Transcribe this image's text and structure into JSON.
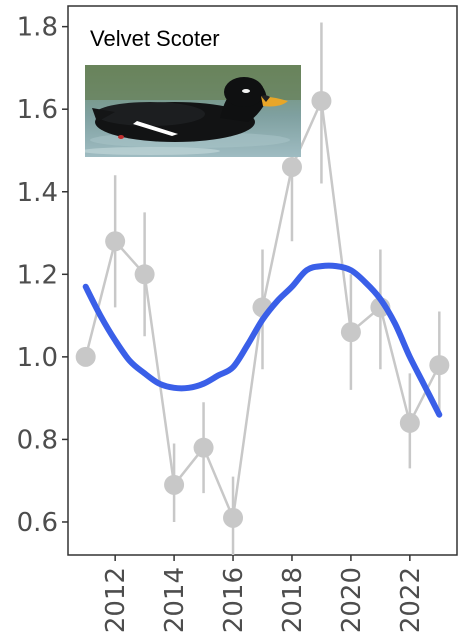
{
  "chart_data": {
    "type": "line",
    "title": "Velvet Scoter",
    "xlabel": "",
    "ylabel": "",
    "xlim": [
      2010.4,
      2023.6
    ],
    "ylim": [
      0.52,
      1.85
    ],
    "x_ticks": [
      2012,
      2014,
      2016,
      2018,
      2020,
      2022
    ],
    "x_tick_labels": [
      "2012",
      "2014",
      "2016",
      "2018",
      "2020",
      "2022"
    ],
    "y_ticks": [
      0.6,
      0.8,
      1.0,
      1.2,
      1.4,
      1.6,
      1.8
    ],
    "y_tick_labels": [
      "0.6",
      "0.8",
      "1.0",
      "1.2",
      "1.4",
      "1.6",
      "1.8"
    ],
    "grid": false,
    "series": [
      {
        "kind": "points-with-error-bars",
        "color": "#c8c8c8",
        "x": [
          2011,
          2012,
          2013,
          2014,
          2015,
          2016,
          2017,
          2018,
          2019,
          2020,
          2021,
          2022,
          2023
        ],
        "y": [
          1.0,
          1.28,
          1.2,
          0.69,
          0.78,
          0.61,
          1.12,
          1.46,
          1.62,
          1.06,
          1.12,
          0.84,
          0.98
        ],
        "lower": [
          1.0,
          1.12,
          1.05,
          0.6,
          0.67,
          0.52,
          0.97,
          1.28,
          1.42,
          0.92,
          0.97,
          0.73,
          0.86
        ],
        "upper": [
          1.0,
          1.44,
          1.35,
          0.79,
          0.89,
          0.71,
          1.26,
          1.65,
          1.81,
          1.2,
          1.26,
          0.96,
          1.11
        ]
      },
      {
        "kind": "smooth-trend",
        "color": "#3a5fe8",
        "x": [
          2011,
          2011.5,
          2012,
          2012.5,
          2013,
          2013.5,
          2014,
          2014.5,
          2015,
          2015.5,
          2016,
          2016.5,
          2017,
          2017.5,
          2018,
          2018.5,
          2019,
          2019.5,
          2020,
          2020.5,
          2021,
          2021.5,
          2022,
          2022.5,
          2023
        ],
        "y": [
          1.17,
          1.1,
          1.04,
          0.99,
          0.96,
          0.935,
          0.925,
          0.925,
          0.935,
          0.955,
          0.975,
          1.03,
          1.09,
          1.135,
          1.17,
          1.21,
          1.22,
          1.22,
          1.21,
          1.18,
          1.14,
          1.08,
          1.0,
          0.93,
          0.86
        ]
      }
    ]
  },
  "inset_image": {
    "subject": "velvet-scoter-duck-photo"
  }
}
